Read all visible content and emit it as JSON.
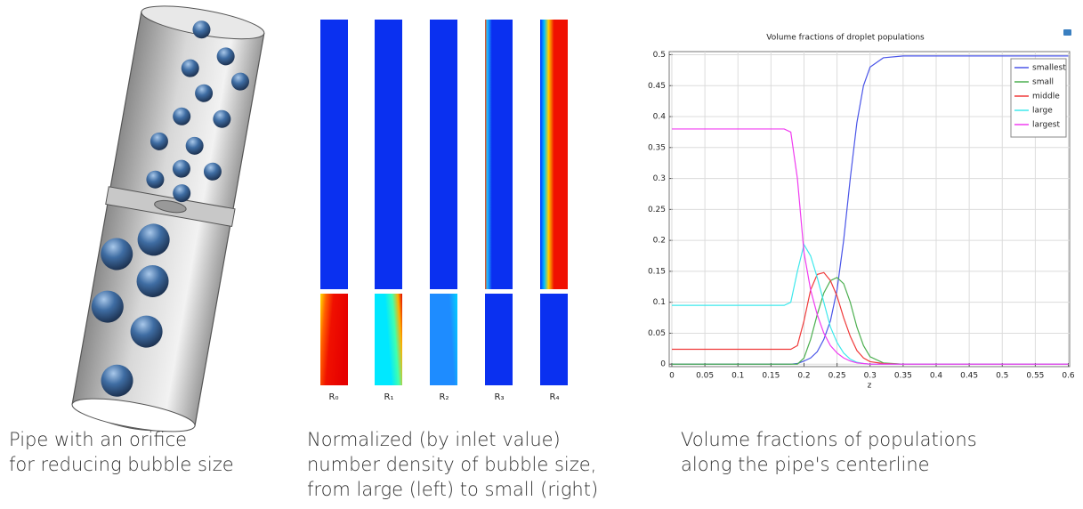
{
  "captions": [
    [
      "Pipe with an orifice",
      "for reducing bubble size"
    ],
    [
      "Normalized (by inlet value)",
      "number density of bubble size,",
      "from large (left) to small (right)"
    ],
    [
      "Volume fractions of populations",
      "along the pipe's centerline"
    ]
  ],
  "contour_labels": [
    "R₀",
    "R₁",
    "R₂",
    "R₃",
    "R₄"
  ],
  "chart_data": {
    "type": "line",
    "title": "Volume fractions of droplet populations",
    "xlabel": "z",
    "x": [
      0,
      0.05,
      0.1,
      0.15,
      0.17,
      0.18,
      0.19,
      0.2,
      0.21,
      0.22,
      0.23,
      0.24,
      0.25,
      0.26,
      0.27,
      0.28,
      0.29,
      0.3,
      0.32,
      0.35,
      0.4,
      0.5,
      0.6
    ],
    "series": [
      {
        "name": "smallest",
        "color": "#4a55e8",
        "values": [
          0,
          0,
          0,
          0,
          0,
          0,
          0.001,
          0.005,
          0.01,
          0.02,
          0.04,
          0.07,
          0.12,
          0.2,
          0.3,
          0.39,
          0.45,
          0.48,
          0.495,
          0.498,
          0.498,
          0.498,
          0.498
        ]
      },
      {
        "name": "small",
        "color": "#4caf50",
        "values": [
          0,
          0,
          0,
          0,
          0,
          0,
          0,
          0.01,
          0.04,
          0.08,
          0.115,
          0.135,
          0.14,
          0.13,
          0.1,
          0.06,
          0.03,
          0.012,
          0.002,
          0,
          0,
          0,
          0
        ]
      },
      {
        "name": "middle",
        "color": "#f03a3a",
        "values": [
          0.024,
          0.024,
          0.024,
          0.024,
          0.024,
          0.024,
          0.03,
          0.07,
          0.12,
          0.145,
          0.148,
          0.135,
          0.11,
          0.075,
          0.045,
          0.022,
          0.01,
          0.004,
          0.001,
          0,
          0,
          0,
          0
        ]
      },
      {
        "name": "large",
        "color": "#3ee8ec",
        "values": [
          0.095,
          0.095,
          0.095,
          0.095,
          0.095,
          0.1,
          0.15,
          0.193,
          0.175,
          0.14,
          0.1,
          0.06,
          0.035,
          0.018,
          0.008,
          0.003,
          0.001,
          0,
          0,
          0,
          0,
          0,
          0
        ]
      },
      {
        "name": "largest",
        "color": "#f03cf0",
        "values": [
          0.38,
          0.38,
          0.38,
          0.38,
          0.38,
          0.375,
          0.3,
          0.18,
          0.12,
          0.08,
          0.05,
          0.03,
          0.018,
          0.01,
          0.005,
          0.002,
          0.001,
          0,
          0,
          0,
          0,
          0,
          0
        ]
      }
    ],
    "xlim": [
      -0.004,
      0.602
    ],
    "xticks": [
      0,
      0.05,
      0.1,
      0.15,
      0.2,
      0.25,
      0.3,
      0.35,
      0.4,
      0.45,
      0.5,
      0.55,
      0.6
    ],
    "ylim": [
      -0.004,
      0.505
    ],
    "yticks": [
      0,
      0.05,
      0.1,
      0.15,
      0.2,
      0.25,
      0.3,
      0.35,
      0.4,
      0.45,
      0.5
    ],
    "grid": true,
    "legend": "upper right"
  }
}
